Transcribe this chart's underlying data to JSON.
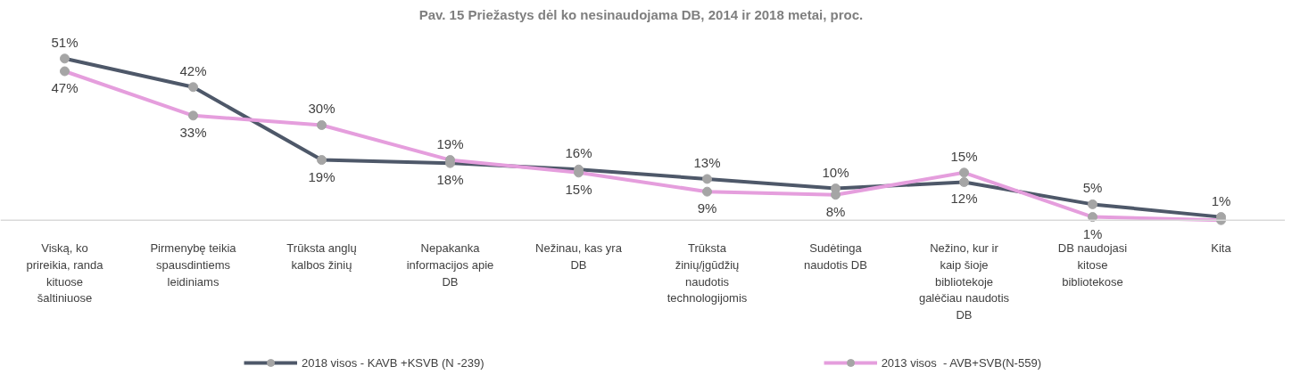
{
  "chart_data": {
    "type": "line",
    "title": "Pav. 15 Priežastys dėl ko nesinaudojama DB, 2014 ir 2018 metai,  proc.",
    "categories": [
      "Viską, ko prireikia, randa kituose šaltiniuose",
      "Pirmenybę teikia spausdintiems leidiniams",
      "Trūksta anglų kalbos žinių",
      "Nepakanka informacijos apie DB",
      "Nežinau, kas yra DB",
      "Trūksta žinių/įgūdžių naudotis technologijomis",
      "Sudėtinga naudotis DB",
      "Nežino, kur ir kaip šioje bibliotekoje galėčiau naudotis DB",
      "DB naudojasi kitose bibliotekose",
      "Kita"
    ],
    "series": [
      {
        "name": "2018 visos - KAVB +KSVB (N -239)",
        "color": "#4e5869",
        "values": [
          51,
          42,
          19,
          18,
          16,
          13,
          10,
          12,
          5,
          1
        ],
        "value_labels": [
          "51%",
          "42%",
          "19%",
          "18%",
          "16%",
          "13%",
          "10%",
          "12%",
          "5%",
          "1%"
        ]
      },
      {
        "name": "2013 visos  - AVB+SVB(N-559)",
        "color": "#e59edd",
        "values": [
          47,
          33,
          30,
          19,
          15,
          9,
          8,
          15,
          1,
          0
        ],
        "value_labels": [
          "47%",
          "33%",
          "30%",
          "19%",
          "15%",
          "9%",
          "8%",
          "15%",
          "1%",
          null
        ]
      }
    ],
    "marker": "circle",
    "legend": "bottom"
  }
}
